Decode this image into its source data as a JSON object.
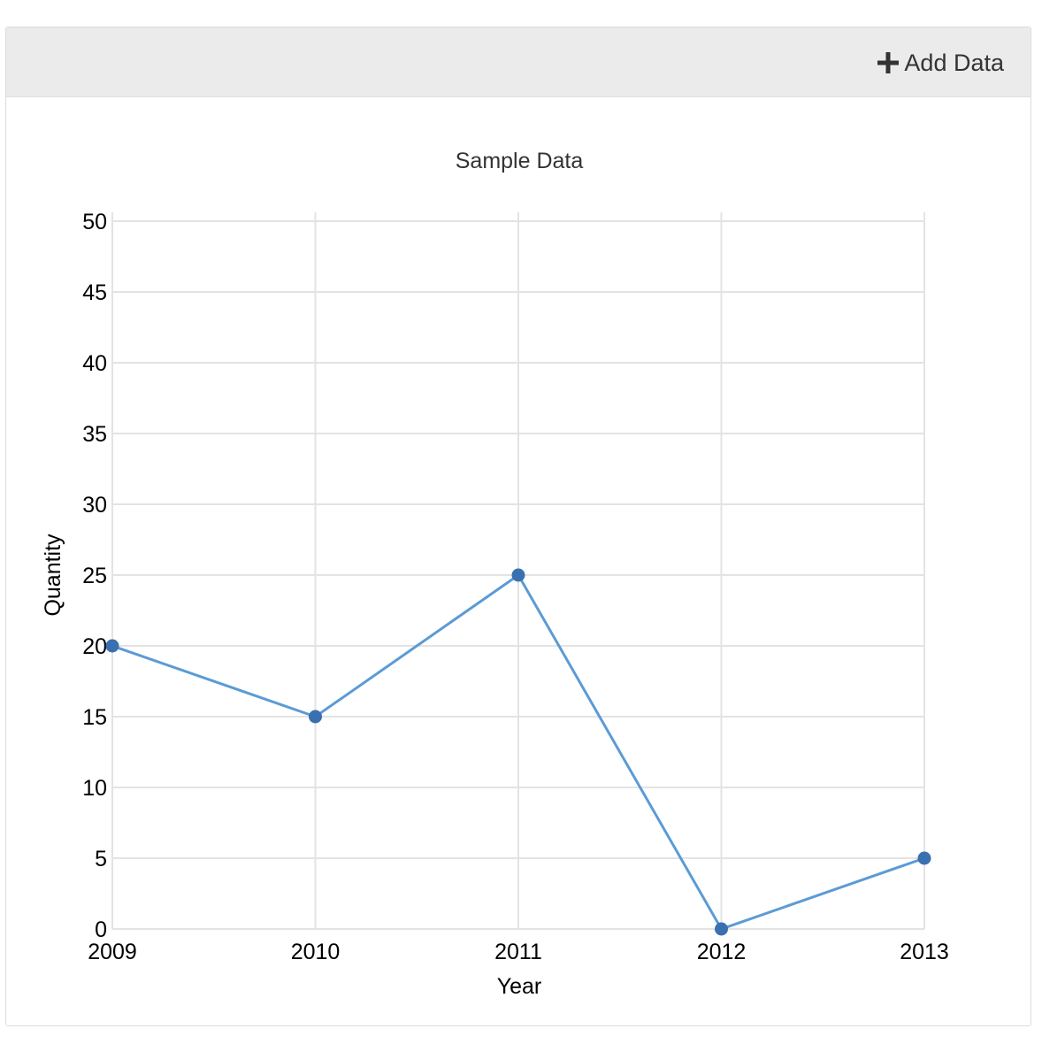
{
  "toolbar": {
    "add_data_label": "Add Data",
    "add_icon": "plus-icon"
  },
  "colors": {
    "header_bg": "#ebebeb",
    "grid": "#e3e3e3",
    "line": "#5b9bd5",
    "point": "#3a70b0",
    "text": "#333333"
  },
  "chart_data": {
    "type": "line",
    "title": "Sample Data",
    "xlabel": "Year",
    "ylabel": "Quantity",
    "categories": [
      "2009",
      "2010",
      "2011",
      "2012",
      "2013"
    ],
    "series": [
      {
        "values": [
          20,
          15,
          25,
          0,
          5
        ]
      }
    ],
    "ylim": [
      0,
      50
    ],
    "yticks": [
      "0",
      "5",
      "10",
      "15",
      "20",
      "25",
      "30",
      "35",
      "40",
      "45",
      "50"
    ],
    "grid": true,
    "markers": true,
    "legend": "none"
  }
}
